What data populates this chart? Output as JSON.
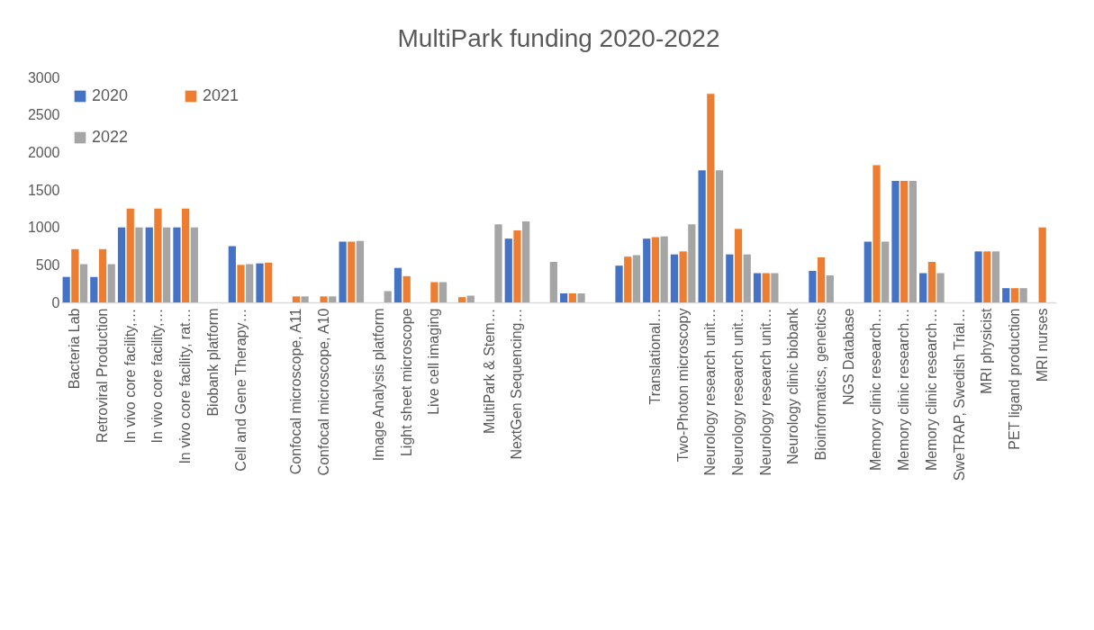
{
  "chart_data": {
    "type": "bar",
    "title": "MultiPark funding 2020-2022",
    "categories": [
      "Bacteria Lab",
      "Retroviral Production",
      "In vivo core facility,…",
      "In vivo core facility,…",
      "In vivo core facility, rat…",
      "Biobank platform",
      "Cell and Gene Therapy…",
      null,
      "Confocal microscope, A11",
      "Confocal microscope, A10",
      null,
      "Image Analysis platform",
      "Light sheet microscope",
      "Live cell imaging",
      null,
      "MultiPark & Stem…",
      "NextGen Sequencing…",
      null,
      null,
      null,
      null,
      "Translational…",
      "Two-Photon microscopy",
      "Neurology research unit…",
      "Neurology research unit…",
      "Neurology research unit…",
      "Neurology clinic biobank",
      "Bioinformatics, genetics",
      "NGS Database",
      "Memory clinic research…",
      "Memory clinic research…",
      "Memory clinic research…",
      "SweTRAP, Swedish Trial…",
      "MRI physicist",
      "PET ligand production",
      "MRI nurses"
    ],
    "series": [
      {
        "name": "2020",
        "color": "#4472c4",
        "values": [
          340,
          340,
          1000,
          1000,
          1000,
          null,
          750,
          520,
          null,
          null,
          810,
          null,
          460,
          null,
          null,
          null,
          850,
          null,
          120,
          null,
          490,
          850,
          640,
          1760,
          640,
          390,
          null,
          420,
          null,
          810,
          1620,
          390,
          null,
          680,
          190,
          null
        ]
      },
      {
        "name": "2021",
        "color": "#ed7d31",
        "values": [
          710,
          710,
          1250,
          1250,
          1250,
          null,
          500,
          530,
          80,
          80,
          810,
          null,
          350,
          270,
          70,
          null,
          960,
          null,
          120,
          null,
          610,
          870,
          680,
          2780,
          980,
          390,
          null,
          600,
          null,
          1830,
          1620,
          540,
          null,
          680,
          190,
          1000
        ]
      },
      {
        "name": "2022",
        "color": "#a5a5a5",
        "values": [
          510,
          510,
          1000,
          1000,
          1000,
          null,
          510,
          null,
          80,
          80,
          820,
          150,
          null,
          270,
          90,
          1040,
          1080,
          540,
          120,
          null,
          630,
          880,
          1040,
          1760,
          640,
          390,
          null,
          360,
          null,
          810,
          1620,
          390,
          null,
          680,
          190,
          null
        ]
      }
    ],
    "ylim": [
      0,
      3000
    ],
    "yticks": [
      0,
      500,
      1000,
      1500,
      2000,
      2500,
      3000
    ],
    "legend": "top left"
  }
}
